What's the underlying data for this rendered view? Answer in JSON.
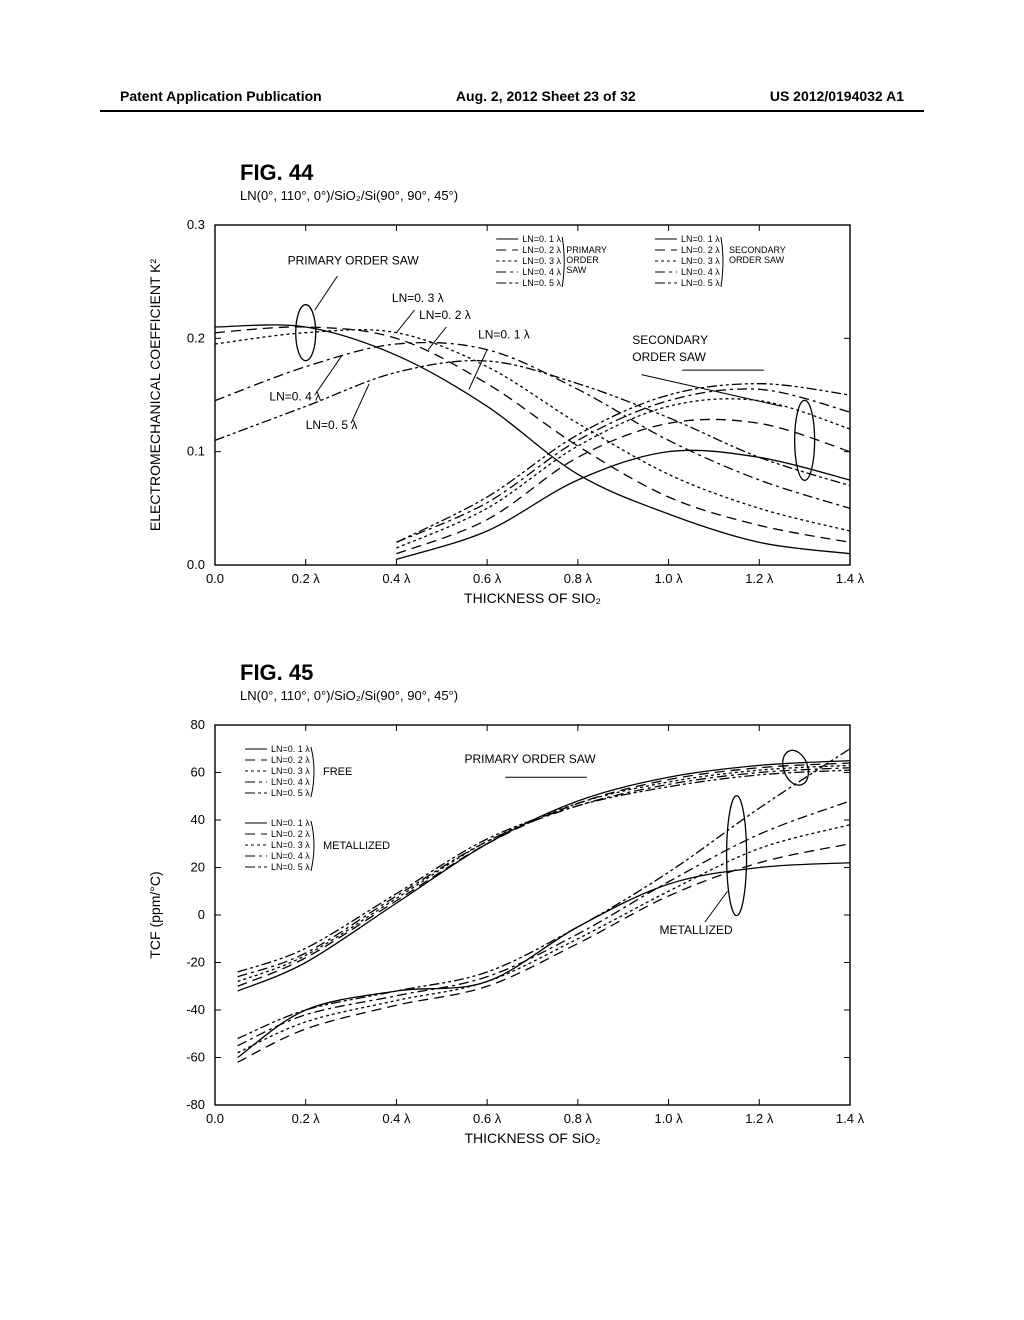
{
  "header": {
    "left": "Patent Application Publication",
    "mid": "Aug. 2, 2012  Sheet 23 of 32",
    "right": "US 2012/0194032 A1"
  },
  "fig44": {
    "title": "FIG. 44",
    "subtitle": "LN(0°, 110°, 0°)/SiO₂/Si(90°, 90°, 45°)",
    "ylabel": "ELECTROMECHANICAL COEFFICIENT K²",
    "xlabel": "THICKNESS OF SIO₂",
    "ylim": [
      0.0,
      0.3
    ],
    "yticks": [
      "0.0",
      "0.1",
      "0.2",
      "0.3"
    ],
    "xticks": [
      "0.0",
      "0.2 λ",
      "0.4 λ",
      "0.6 λ",
      "0.8 λ",
      "1.0 λ",
      "1.2 λ",
      "1.4 λ"
    ],
    "grid_color": "#000000",
    "background": "#ffffff",
    "line_color": "#000000",
    "primary_annotations": {
      "label_primary": "PRIMARY ORDER SAW",
      "label_secondary": "SECONDARY ORDER SAW",
      "ln01": "LN=0. 1 λ",
      "ln02": "LN=0. 2 λ",
      "ln03": "LN=0. 3 λ",
      "ln04": "LN=0. 4 λ",
      "ln05": "LN=0. 5 λ"
    },
    "legend_primary_header": "PRIMARY ORDER SAW",
    "legend_secondary_header": "SECONDARY ORDER SAW",
    "legend_items": [
      "LN=0. 1 λ",
      "LN=0. 2 λ",
      "LN=0. 3 λ",
      "LN=0. 4 λ",
      "LN=0. 5 λ"
    ],
    "series": {
      "primary": [
        {
          "name": "LN=0.1λ",
          "dash": "",
          "pts": [
            [
              0.0,
              0.21
            ],
            [
              0.2,
              0.21
            ],
            [
              0.4,
              0.185
            ],
            [
              0.6,
              0.14
            ],
            [
              0.8,
              0.08
            ],
            [
              1.0,
              0.045
            ],
            [
              1.2,
              0.02
            ],
            [
              1.4,
              0.01
            ]
          ]
        },
        {
          "name": "LN=0.2λ",
          "dash": "10,6",
          "pts": [
            [
              0.0,
              0.205
            ],
            [
              0.2,
              0.21
            ],
            [
              0.4,
              0.2
            ],
            [
              0.6,
              0.16
            ],
            [
              0.8,
              0.105
            ],
            [
              1.0,
              0.06
            ],
            [
              1.2,
              0.035
            ],
            [
              1.4,
              0.02
            ]
          ]
        },
        {
          "name": "LN=0.3λ",
          "dash": "3,3",
          "pts": [
            [
              0.0,
              0.195
            ],
            [
              0.2,
              0.205
            ],
            [
              0.4,
              0.205
            ],
            [
              0.6,
              0.175
            ],
            [
              0.8,
              0.125
            ],
            [
              1.0,
              0.08
            ],
            [
              1.2,
              0.05
            ],
            [
              1.4,
              0.03
            ]
          ]
        },
        {
          "name": "LN=0.4λ",
          "dash": "10,4,3,4",
          "pts": [
            [
              0.0,
              0.145
            ],
            [
              0.2,
              0.175
            ],
            [
              0.4,
              0.195
            ],
            [
              0.6,
              0.19
            ],
            [
              0.8,
              0.155
            ],
            [
              1.0,
              0.11
            ],
            [
              1.2,
              0.075
            ],
            [
              1.4,
              0.05
            ]
          ]
        },
        {
          "name": "LN=0.5λ",
          "dash": "10,3,3,3,3,3",
          "pts": [
            [
              0.0,
              0.11
            ],
            [
              0.2,
              0.14
            ],
            [
              0.4,
              0.17
            ],
            [
              0.6,
              0.18
            ],
            [
              0.8,
              0.16
            ],
            [
              1.0,
              0.13
            ],
            [
              1.2,
              0.095
            ],
            [
              1.4,
              0.07
            ]
          ]
        }
      ],
      "secondary": [
        {
          "name": "LN=0.1λ",
          "dash": "",
          "pts": [
            [
              0.4,
              0.005
            ],
            [
              0.6,
              0.03
            ],
            [
              0.8,
              0.075
            ],
            [
              1.0,
              0.1
            ],
            [
              1.2,
              0.095
            ],
            [
              1.4,
              0.075
            ]
          ]
        },
        {
          "name": "LN=0.2λ",
          "dash": "10,6",
          "pts": [
            [
              0.4,
              0.01
            ],
            [
              0.6,
              0.04
            ],
            [
              0.8,
              0.095
            ],
            [
              1.0,
              0.125
            ],
            [
              1.2,
              0.125
            ],
            [
              1.4,
              0.1
            ]
          ]
        },
        {
          "name": "LN=0.3λ",
          "dash": "3,3",
          "pts": [
            [
              0.4,
              0.015
            ],
            [
              0.6,
              0.05
            ],
            [
              0.8,
              0.105
            ],
            [
              1.0,
              0.14
            ],
            [
              1.2,
              0.145
            ],
            [
              1.4,
              0.12
            ]
          ]
        },
        {
          "name": "LN=0.4λ",
          "dash": "10,4,3,4",
          "pts": [
            [
              0.4,
              0.02
            ],
            [
              0.6,
              0.055
            ],
            [
              0.8,
              0.11
            ],
            [
              1.0,
              0.145
            ],
            [
              1.2,
              0.155
            ],
            [
              1.4,
              0.135
            ]
          ]
        },
        {
          "name": "LN=0.5λ",
          "dash": "10,3,3,3,3,3",
          "pts": [
            [
              0.4,
              0.02
            ],
            [
              0.6,
              0.06
            ],
            [
              0.8,
              0.115
            ],
            [
              1.0,
              0.15
            ],
            [
              1.2,
              0.16
            ],
            [
              1.4,
              0.15
            ]
          ]
        }
      ]
    }
  },
  "fig45": {
    "title": "FIG. 45",
    "subtitle": "LN(0°, 110°, 0°)/SiO₂/Si(90°, 90°, 45°)",
    "ylabel": "TCF (ppm/°C)",
    "xlabel": "THICKNESS OF SiO₂",
    "ylim": [
      -80,
      80
    ],
    "yticks": [
      "-80",
      "-60",
      "-40",
      "-20",
      "0",
      "20",
      "40",
      "60",
      "80"
    ],
    "xticks": [
      "0.0",
      "0.2 λ",
      "0.4 λ",
      "0.6 λ",
      "0.8 λ",
      "1.0 λ",
      "1.2 λ",
      "1.4 λ"
    ],
    "legend_free": "FREE",
    "legend_metal": "METALLIZED",
    "legend_items": [
      "LN=0. 1 λ",
      "LN=0. 2 λ",
      "LN=0. 3 λ",
      "LN=0. 4 λ",
      "LN=0. 5 λ"
    ],
    "anno_primary": "PRIMARY ORDER SAW",
    "anno_metal": "METALLIZED",
    "line_color": "#000000",
    "series": {
      "free": [
        {
          "dash": "",
          "pts": [
            [
              0.05,
              -32
            ],
            [
              0.2,
              -20
            ],
            [
              0.4,
              5
            ],
            [
              0.6,
              30
            ],
            [
              0.8,
              48
            ],
            [
              1.0,
              58
            ],
            [
              1.2,
              63
            ],
            [
              1.4,
              65
            ]
          ]
        },
        {
          "dash": "10,6",
          "pts": [
            [
              0.05,
              -30
            ],
            [
              0.2,
              -18
            ],
            [
              0.4,
              6
            ],
            [
              0.6,
              30
            ],
            [
              0.8,
              47
            ],
            [
              1.0,
              57
            ],
            [
              1.2,
              62
            ],
            [
              1.4,
              64
            ]
          ]
        },
        {
          "dash": "3,3",
          "pts": [
            [
              0.05,
              -28
            ],
            [
              0.2,
              -17
            ],
            [
              0.4,
              7
            ],
            [
              0.6,
              31
            ],
            [
              0.8,
              47
            ],
            [
              1.0,
              56
            ],
            [
              1.2,
              61
            ],
            [
              1.4,
              63
            ]
          ]
        },
        {
          "dash": "10,4,3,4",
          "pts": [
            [
              0.05,
              -26
            ],
            [
              0.2,
              -16
            ],
            [
              0.4,
              8
            ],
            [
              0.6,
              31
            ],
            [
              0.8,
              46
            ],
            [
              1.0,
              55
            ],
            [
              1.2,
              60
            ],
            [
              1.4,
              62
            ]
          ]
        },
        {
          "dash": "10,3,3,3,3,3",
          "pts": [
            [
              0.05,
              -24
            ],
            [
              0.2,
              -14
            ],
            [
              0.4,
              9
            ],
            [
              0.6,
              32
            ],
            [
              0.8,
              46
            ],
            [
              1.0,
              54
            ],
            [
              1.2,
              59
            ],
            [
              1.4,
              61
            ]
          ]
        }
      ],
      "metal": [
        {
          "dash": "",
          "pts": [
            [
              0.05,
              -60
            ],
            [
              0.2,
              -40
            ],
            [
              0.4,
              -32
            ],
            [
              0.6,
              -28
            ],
            [
              0.8,
              -5
            ],
            [
              1.0,
              13
            ],
            [
              1.2,
              20
            ],
            [
              1.4,
              22
            ]
          ]
        },
        {
          "dash": "10,6",
          "pts": [
            [
              0.05,
              -62
            ],
            [
              0.2,
              -48
            ],
            [
              0.4,
              -38
            ],
            [
              0.6,
              -30
            ],
            [
              0.8,
              -12
            ],
            [
              1.0,
              8
            ],
            [
              1.2,
              22
            ],
            [
              1.4,
              30
            ]
          ]
        },
        {
          "dash": "3,3",
          "pts": [
            [
              0.05,
              -58
            ],
            [
              0.2,
              -45
            ],
            [
              0.4,
              -36
            ],
            [
              0.6,
              -28
            ],
            [
              0.8,
              -10
            ],
            [
              1.0,
              10
            ],
            [
              1.2,
              28
            ],
            [
              1.4,
              38
            ]
          ]
        },
        {
          "dash": "10,4,3,4",
          "pts": [
            [
              0.05,
              -55
            ],
            [
              0.2,
              -42
            ],
            [
              0.4,
              -34
            ],
            [
              0.6,
              -26
            ],
            [
              0.8,
              -8
            ],
            [
              1.0,
              14
            ],
            [
              1.2,
              34
            ],
            [
              1.4,
              48
            ]
          ]
        },
        {
          "dash": "10,3,3,3,3,3",
          "pts": [
            [
              0.05,
              -52
            ],
            [
              0.2,
              -40
            ],
            [
              0.4,
              -32
            ],
            [
              0.6,
              -24
            ],
            [
              0.8,
              -5
            ],
            [
              1.0,
              18
            ],
            [
              1.2,
              45
            ],
            [
              1.4,
              70
            ]
          ]
        }
      ]
    }
  }
}
